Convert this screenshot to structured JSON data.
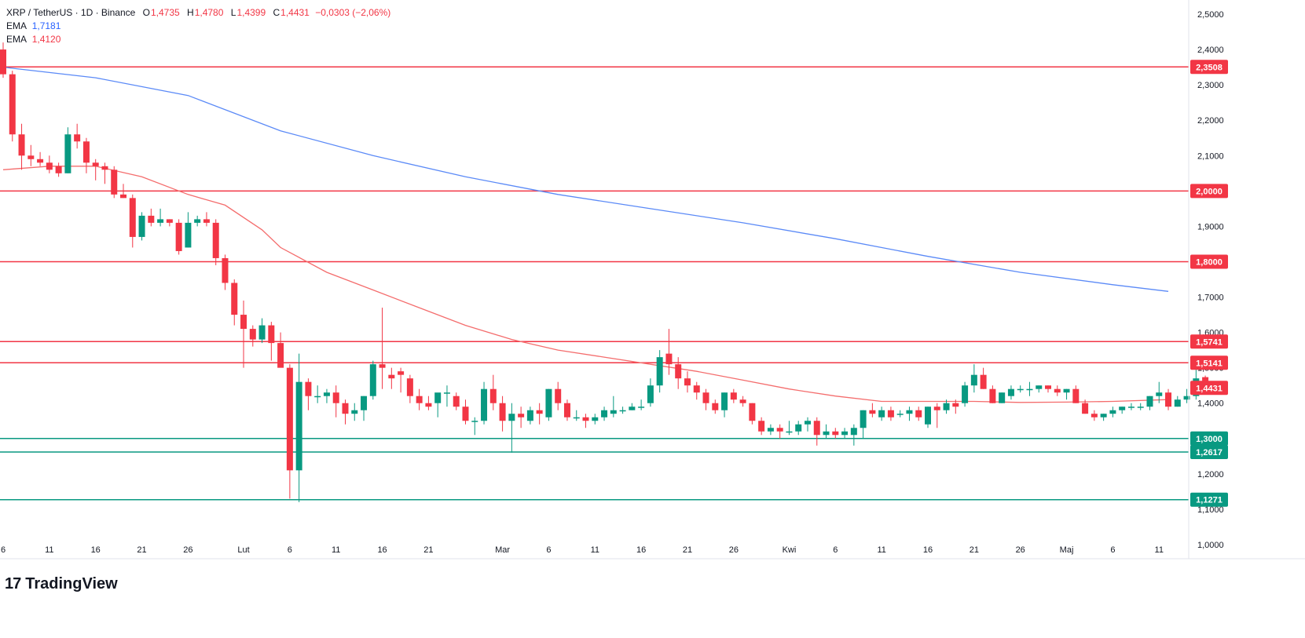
{
  "legend": {
    "symbol": "XRP / TetherUS · 1D · Binance",
    "o_label": "O",
    "open": "1,4735",
    "h_label": "H",
    "high": "1,4780",
    "l_label": "L",
    "low": "1,4399",
    "c_label": "C",
    "close": "1,4431",
    "change": "−0,0303 (−2,06%)",
    "ema1_label": "EMA",
    "ema1_value": "1,7181",
    "ema2_label": "EMA",
    "ema2_value": "1,4120"
  },
  "footer": {
    "logo_mark": "17",
    "brand": "TradingView"
  },
  "colors": {
    "up": "#089981",
    "down": "#f23645",
    "ema_long": "#5b8af7",
    "ema_short": "#f46d6d",
    "resistance": "#f23645",
    "support": "#089981",
    "ema1_text": "#2962ff",
    "ema2_text": "#f23645"
  },
  "chart_data": {
    "type": "candlestick",
    "symbol": "XRP / TetherUS",
    "interval": "1D",
    "exchange": "Binance",
    "ylim": [
      0.96,
      2.54
    ],
    "y_ticks": [
      "2,5000",
      "2,4000",
      "2,3000",
      "2,2000",
      "2,1000",
      "2,0000",
      "1,9000",
      "1,8000",
      "1,7000",
      "1,6000",
      "1,5000",
      "1,4000",
      "1,3000",
      "1,2000",
      "1,1000",
      "1,0000"
    ],
    "x_ticks": [
      {
        "i": 0,
        "label": "6"
      },
      {
        "i": 5,
        "label": "11"
      },
      {
        "i": 10,
        "label": "16"
      },
      {
        "i": 15,
        "label": "21"
      },
      {
        "i": 20,
        "label": "26"
      },
      {
        "i": 26,
        "label": "Lut"
      },
      {
        "i": 31,
        "label": "6"
      },
      {
        "i": 36,
        "label": "11"
      },
      {
        "i": 41,
        "label": "16"
      },
      {
        "i": 46,
        "label": "21"
      },
      {
        "i": 54,
        "label": "Mar"
      },
      {
        "i": 59,
        "label": "6"
      },
      {
        "i": 64,
        "label": "11"
      },
      {
        "i": 69,
        "label": "16"
      },
      {
        "i": 74,
        "label": "21"
      },
      {
        "i": 79,
        "label": "26"
      },
      {
        "i": 85,
        "label": "Kwi"
      },
      {
        "i": 90,
        "label": "6"
      },
      {
        "i": 95,
        "label": "11"
      },
      {
        "i": 100,
        "label": "16"
      },
      {
        "i": 105,
        "label": "21"
      },
      {
        "i": 110,
        "label": "26"
      },
      {
        "i": 115,
        "label": "Maj"
      },
      {
        "i": 120,
        "label": "6"
      },
      {
        "i": 125,
        "label": "11"
      }
    ],
    "horizontal_levels": [
      {
        "value": 2.3508,
        "label": "2,3508",
        "kind": "resistance"
      },
      {
        "value": 2.0,
        "label": "2,0000",
        "kind": "resistance"
      },
      {
        "value": 1.8,
        "label": "1,8000",
        "kind": "resistance"
      },
      {
        "value": 1.5741,
        "label": "1,5741",
        "kind": "resistance"
      },
      {
        "value": 1.5141,
        "label": "1,5141",
        "kind": "resistance"
      },
      {
        "value": 1.3,
        "label": "1,3000",
        "kind": "support"
      },
      {
        "value": 1.2617,
        "label": "1,2617",
        "kind": "support"
      },
      {
        "value": 1.1271,
        "label": "1,1271",
        "kind": "support"
      }
    ],
    "last_price": {
      "value": 1.4431,
      "label": "1,4431"
    },
    "series": [
      {
        "name": "EMA",
        "value_label": "1,7181",
        "points": [
          [
            0,
            2.35
          ],
          [
            10,
            2.32
          ],
          [
            20,
            2.27
          ],
          [
            30,
            2.17
          ],
          [
            40,
            2.1
          ],
          [
            50,
            2.04
          ],
          [
            60,
            1.99
          ],
          [
            70,
            1.95
          ],
          [
            80,
            1.91
          ],
          [
            90,
            1.865
          ],
          [
            100,
            1.815
          ],
          [
            110,
            1.77
          ],
          [
            120,
            1.735
          ],
          [
            126,
            1.716
          ]
        ]
      },
      {
        "name": "EMA",
        "value_label": "1,4120",
        "points": [
          [
            0,
            2.06
          ],
          [
            5,
            2.07
          ],
          [
            10,
            2.07
          ],
          [
            15,
            2.04
          ],
          [
            20,
            1.99
          ],
          [
            24,
            1.96
          ],
          [
            28,
            1.89
          ],
          [
            30,
            1.84
          ],
          [
            35,
            1.77
          ],
          [
            40,
            1.72
          ],
          [
            45,
            1.67
          ],
          [
            50,
            1.62
          ],
          [
            55,
            1.58
          ],
          [
            60,
            1.55
          ],
          [
            65,
            1.53
          ],
          [
            70,
            1.51
          ],
          [
            75,
            1.49
          ],
          [
            80,
            1.465
          ],
          [
            85,
            1.44
          ],
          [
            90,
            1.42
          ],
          [
            95,
            1.405
          ],
          [
            100,
            1.405
          ],
          [
            105,
            1.405
          ],
          [
            110,
            1.402
          ],
          [
            115,
            1.403
          ],
          [
            120,
            1.405
          ],
          [
            126,
            1.41
          ]
        ]
      }
    ],
    "ohlc": [
      [
        2.4,
        2.42,
        2.32,
        2.33
      ],
      [
        2.33,
        2.34,
        2.14,
        2.16
      ],
      [
        2.16,
        2.19,
        2.06,
        2.1
      ],
      [
        2.1,
        2.13,
        2.07,
        2.09
      ],
      [
        2.09,
        2.11,
        2.07,
        2.08
      ],
      [
        2.08,
        2.1,
        2.05,
        2.06
      ],
      [
        2.07,
        2.08,
        2.04,
        2.05
      ],
      [
        2.05,
        2.18,
        2.05,
        2.16
      ],
      [
        2.16,
        2.19,
        2.12,
        2.14
      ],
      [
        2.14,
        2.15,
        2.05,
        2.08
      ],
      [
        2.08,
        2.09,
        2.03,
        2.07
      ],
      [
        2.07,
        2.08,
        2.02,
        2.06
      ],
      [
        2.06,
        2.07,
        1.98,
        1.99
      ],
      [
        1.99,
        2.02,
        1.98,
        1.98
      ],
      [
        1.98,
        1.99,
        1.84,
        1.87
      ],
      [
        1.87,
        1.94,
        1.86,
        1.93
      ],
      [
        1.93,
        1.95,
        1.9,
        1.91
      ],
      [
        1.91,
        1.95,
        1.9,
        1.92
      ],
      [
        1.92,
        1.92,
        1.9,
        1.91
      ],
      [
        1.91,
        1.92,
        1.82,
        1.83
      ],
      [
        1.84,
        1.94,
        1.84,
        1.91
      ],
      [
        1.91,
        1.93,
        1.9,
        1.92
      ],
      [
        1.92,
        1.94,
        1.9,
        1.91
      ],
      [
        1.91,
        1.92,
        1.79,
        1.81
      ],
      [
        1.81,
        1.82,
        1.72,
        1.74
      ],
      [
        1.74,
        1.75,
        1.62,
        1.65
      ],
      [
        1.65,
        1.69,
        1.5,
        1.61
      ],
      [
        1.61,
        1.62,
        1.56,
        1.58
      ],
      [
        1.58,
        1.64,
        1.57,
        1.62
      ],
      [
        1.62,
        1.63,
        1.52,
        1.57
      ],
      [
        1.57,
        1.6,
        1.51,
        1.5
      ],
      [
        1.5,
        1.51,
        1.13,
        1.21
      ],
      [
        1.21,
        1.54,
        1.12,
        1.46
      ],
      [
        1.46,
        1.47,
        1.38,
        1.42
      ],
      [
        1.42,
        1.45,
        1.4,
        1.42
      ],
      [
        1.42,
        1.44,
        1.4,
        1.43
      ],
      [
        1.43,
        1.45,
        1.36,
        1.4
      ],
      [
        1.4,
        1.41,
        1.34,
        1.37
      ],
      [
        1.37,
        1.4,
        1.35,
        1.38
      ],
      [
        1.38,
        1.42,
        1.35,
        1.42
      ],
      [
        1.42,
        1.52,
        1.41,
        1.51
      ],
      [
        1.51,
        1.67,
        1.44,
        1.5
      ],
      [
        1.48,
        1.5,
        1.44,
        1.47
      ],
      [
        1.49,
        1.5,
        1.43,
        1.48
      ],
      [
        1.47,
        1.48,
        1.4,
        1.42
      ],
      [
        1.42,
        1.44,
        1.38,
        1.4
      ],
      [
        1.4,
        1.42,
        1.38,
        1.39
      ],
      [
        1.4,
        1.42,
        1.36,
        1.43
      ],
      [
        1.43,
        1.45,
        1.39,
        1.43
      ],
      [
        1.42,
        1.43,
        1.38,
        1.39
      ],
      [
        1.39,
        1.41,
        1.34,
        1.35
      ],
      [
        1.35,
        1.36,
        1.31,
        1.35
      ],
      [
        1.35,
        1.46,
        1.34,
        1.44
      ],
      [
        1.44,
        1.48,
        1.38,
        1.4
      ],
      [
        1.4,
        1.42,
        1.32,
        1.35
      ],
      [
        1.35,
        1.4,
        1.26,
        1.37
      ],
      [
        1.37,
        1.39,
        1.33,
        1.36
      ],
      [
        1.35,
        1.39,
        1.34,
        1.38
      ],
      [
        1.38,
        1.4,
        1.34,
        1.37
      ],
      [
        1.36,
        1.44,
        1.35,
        1.44
      ],
      [
        1.44,
        1.46,
        1.38,
        1.4
      ],
      [
        1.4,
        1.41,
        1.35,
        1.36
      ],
      [
        1.36,
        1.38,
        1.35,
        1.36
      ],
      [
        1.36,
        1.37,
        1.33,
        1.35
      ],
      [
        1.35,
        1.37,
        1.34,
        1.36
      ],
      [
        1.36,
        1.39,
        1.35,
        1.38
      ],
      [
        1.37,
        1.42,
        1.36,
        1.38
      ],
      [
        1.38,
        1.39,
        1.37,
        1.38
      ],
      [
        1.38,
        1.4,
        1.38,
        1.39
      ],
      [
        1.39,
        1.41,
        1.38,
        1.39
      ],
      [
        1.4,
        1.47,
        1.39,
        1.45
      ],
      [
        1.45,
        1.55,
        1.43,
        1.53
      ],
      [
        1.54,
        1.61,
        1.48,
        1.51
      ],
      [
        1.51,
        1.53,
        1.44,
        1.47
      ],
      [
        1.47,
        1.49,
        1.43,
        1.45
      ],
      [
        1.45,
        1.46,
        1.41,
        1.43
      ],
      [
        1.43,
        1.44,
        1.38,
        1.4
      ],
      [
        1.4,
        1.41,
        1.37,
        1.38
      ],
      [
        1.38,
        1.43,
        1.36,
        1.43
      ],
      [
        1.43,
        1.44,
        1.4,
        1.41
      ],
      [
        1.41,
        1.42,
        1.39,
        1.4
      ],
      [
        1.4,
        1.4,
        1.34,
        1.35
      ],
      [
        1.35,
        1.36,
        1.31,
        1.32
      ],
      [
        1.32,
        1.34,
        1.31,
        1.33
      ],
      [
        1.33,
        1.34,
        1.3,
        1.32
      ],
      [
        1.32,
        1.35,
        1.31,
        1.32
      ],
      [
        1.32,
        1.35,
        1.31,
        1.34
      ],
      [
        1.34,
        1.36,
        1.32,
        1.35
      ],
      [
        1.35,
        1.36,
        1.28,
        1.31
      ],
      [
        1.31,
        1.34,
        1.3,
        1.32
      ],
      [
        1.32,
        1.33,
        1.3,
        1.31
      ],
      [
        1.31,
        1.33,
        1.3,
        1.32
      ],
      [
        1.31,
        1.34,
        1.28,
        1.33
      ],
      [
        1.33,
        1.38,
        1.3,
        1.38
      ],
      [
        1.38,
        1.4,
        1.36,
        1.37
      ],
      [
        1.36,
        1.39,
        1.35,
        1.38
      ],
      [
        1.38,
        1.39,
        1.35,
        1.36
      ],
      [
        1.37,
        1.38,
        1.36,
        1.37
      ],
      [
        1.37,
        1.39,
        1.35,
        1.38
      ],
      [
        1.38,
        1.39,
        1.35,
        1.36
      ],
      [
        1.34,
        1.39,
        1.33,
        1.39
      ],
      [
        1.39,
        1.4,
        1.33,
        1.38
      ],
      [
        1.38,
        1.41,
        1.37,
        1.4
      ],
      [
        1.4,
        1.41,
        1.37,
        1.39
      ],
      [
        1.4,
        1.46,
        1.39,
        1.45
      ],
      [
        1.45,
        1.51,
        1.43,
        1.48
      ],
      [
        1.48,
        1.5,
        1.44,
        1.44
      ],
      [
        1.44,
        1.45,
        1.4,
        1.4
      ],
      [
        1.4,
        1.43,
        1.4,
        1.43
      ],
      [
        1.42,
        1.45,
        1.41,
        1.44
      ],
      [
        1.44,
        1.45,
        1.43,
        1.44
      ],
      [
        1.44,
        1.46,
        1.42,
        1.44
      ],
      [
        1.44,
        1.45,
        1.43,
        1.45
      ],
      [
        1.45,
        1.45,
        1.43,
        1.44
      ],
      [
        1.44,
        1.45,
        1.42,
        1.43
      ],
      [
        1.43,
        1.44,
        1.41,
        1.44
      ],
      [
        1.44,
        1.45,
        1.4,
        1.4
      ],
      [
        1.4,
        1.41,
        1.37,
        1.37
      ],
      [
        1.37,
        1.38,
        1.35,
        1.36
      ],
      [
        1.36,
        1.37,
        1.35,
        1.37
      ],
      [
        1.37,
        1.39,
        1.36,
        1.38
      ],
      [
        1.38,
        1.39,
        1.37,
        1.39
      ],
      [
        1.39,
        1.4,
        1.38,
        1.39
      ],
      [
        1.39,
        1.4,
        1.38,
        1.39
      ],
      [
        1.39,
        1.42,
        1.38,
        1.42
      ],
      [
        1.42,
        1.46,
        1.4,
        1.43
      ],
      [
        1.43,
        1.44,
        1.38,
        1.39
      ],
      [
        1.39,
        1.42,
        1.39,
        1.41
      ],
      [
        1.41,
        1.44,
        1.4,
        1.42
      ],
      [
        1.42,
        1.51,
        1.41,
        1.47
      ],
      [
        1.4735,
        1.478,
        1.4399,
        1.4431
      ]
    ]
  }
}
